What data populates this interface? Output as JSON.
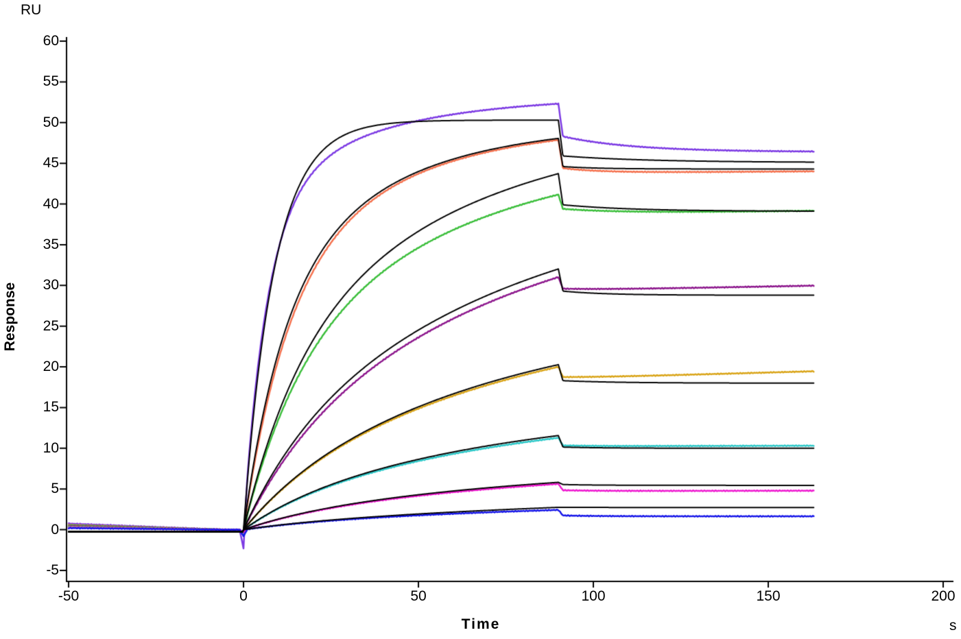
{
  "labels": {
    "y_unit": "RU",
    "y_axis": "Response",
    "x_axis": "Time",
    "x_unit": "s"
  },
  "chart_data": {
    "type": "line",
    "title": "",
    "ylabel": "Response",
    "yunit": "RU",
    "xlabel": "Time",
    "xunit": "s",
    "xlim": [
      -50,
      200
    ],
    "ylim": [
      -5,
      60
    ],
    "x_ticks": [
      -50,
      0,
      50,
      100,
      150,
      200
    ],
    "y_ticks": [
      60,
      55,
      50,
      45,
      40,
      35,
      30,
      25,
      20,
      15,
      10,
      5,
      0,
      -5
    ],
    "grid": false,
    "legend": "none",
    "phases": {
      "baseline_start": -50,
      "association_start": 0,
      "dissociation_start": 90,
      "end_time": 163
    },
    "series": [
      {
        "name": "curve-violet",
        "color": "#7C3AE3",
        "width": 2.5,
        "noise": 0.06,
        "baseline": 0.75,
        "baseline_mode": "decay",
        "dip": -2.3,
        "assoc": [
          [
            40,
            0.15
          ],
          [
            13.2,
            0.03
          ]
        ],
        "dissoc": {
          "drop_to": 48.3,
          "plateau": 46.4,
          "kd": 0.05,
          "drift": 0
        },
        "key_points": [
          [
            -50,
            0.75
          ],
          [
            0,
            0
          ],
          [
            90,
            52.3
          ],
          [
            163,
            46.5
          ]
        ]
      },
      {
        "name": "curve-coral",
        "color": "#F4714E",
        "width": 2.5,
        "noise": 0.06,
        "baseline": 0.6,
        "baseline_mode": "decay",
        "dip": -0.5,
        "assoc": [
          [
            30,
            0.08
          ],
          [
            20,
            0.025
          ]
        ],
        "dissoc": {
          "drop_to": 44.4,
          "plateau": 43.8,
          "kd": 0.09,
          "drift": 0.003
        },
        "key_points": [
          [
            -50,
            0.6
          ],
          [
            0,
            0
          ],
          [
            90,
            47.9
          ],
          [
            163,
            44.0
          ]
        ]
      },
      {
        "name": "curve-green",
        "color": "#3BBE3B",
        "width": 2.5,
        "noise": 0.06,
        "baseline": 0.55,
        "baseline_mode": "decay",
        "dip": -0.5,
        "assoc": [
          [
            22,
            0.06
          ],
          [
            26,
            0.015
          ]
        ],
        "dissoc": {
          "drop_to": 39.4,
          "plateau": 38.8,
          "kd": 0.06,
          "drift": 0.005
        },
        "key_points": [
          [
            -50,
            0.55
          ],
          [
            0,
            0
          ],
          [
            90,
            41.2
          ],
          [
            163,
            39.2
          ]
        ]
      },
      {
        "name": "curve-purple",
        "color": "#8C168C",
        "width": 2.5,
        "noise": 0.06,
        "baseline": 0.45,
        "baseline_mode": "decay",
        "dip": -0.4,
        "assoc": [
          [
            10,
            0.05
          ],
          [
            32,
            0.012
          ]
        ],
        "dissoc": {
          "drop_to": 29.6,
          "plateau": 29.4,
          "kd": 0.08,
          "drift": 0.008
        },
        "key_points": [
          [
            -50,
            0.45
          ],
          [
            0,
            0
          ],
          [
            90,
            31.0
          ],
          [
            163,
            30.0
          ]
        ]
      },
      {
        "name": "curve-gold",
        "color": "#D9A418",
        "width": 2.5,
        "noise": 0.06,
        "baseline": 0.35,
        "baseline_mode": "decay",
        "dip": -0.4,
        "assoc": [
          [
            5,
            0.05
          ],
          [
            22.8,
            0.012
          ]
        ],
        "dissoc": {
          "drop_to": 18.75,
          "plateau": 18.6,
          "kd": 0.08,
          "drift": 0.012
        },
        "key_points": [
          [
            -50,
            0.35
          ],
          [
            0,
            0
          ],
          [
            90,
            20.0
          ],
          [
            163,
            19.5
          ]
        ]
      },
      {
        "name": "curve-cyan",
        "color": "#2CC8C8",
        "width": 2.5,
        "noise": 0.06,
        "baseline": 0.3,
        "baseline_mode": "decay",
        "dip": -0.35,
        "assoc": [
          [
            3,
            0.05
          ],
          [
            12.6,
            0.012
          ]
        ],
        "dissoc": {
          "drop_to": 10.35,
          "plateau": 10.25,
          "kd": 0.1,
          "drift": 0.001
        },
        "key_points": [
          [
            -50,
            0.3
          ],
          [
            0,
            0
          ],
          [
            90,
            11.3
          ],
          [
            163,
            10.3
          ]
        ]
      },
      {
        "name": "curve-magenta",
        "color": "#EE18CF",
        "width": 2.5,
        "noise": 0.06,
        "baseline": 0.25,
        "baseline_mode": "decay",
        "dip": -0.3,
        "assoc": [
          [
            1.5,
            0.05
          ],
          [
            6.6,
            0.011
          ]
        ],
        "dissoc": {
          "drop_to": 4.85,
          "plateau": 4.75,
          "kd": 0.1,
          "drift": 0.0006
        },
        "key_points": [
          [
            -50,
            0.25
          ],
          [
            0,
            0
          ],
          [
            90,
            5.6
          ],
          [
            163,
            4.8
          ]
        ]
      },
      {
        "name": "curve-blue",
        "color": "#1616E8",
        "width": 2.5,
        "noise": 0.06,
        "baseline": 0.2,
        "baseline_mode": "decay",
        "dip": -0.8,
        "assoc": [
          [
            0.6,
            0.05
          ],
          [
            3.1,
            0.01
          ]
        ],
        "dissoc": {
          "drop_to": 1.75,
          "plateau": 1.65,
          "kd": 0.1,
          "drift": 0
        },
        "key_points": [
          [
            -50,
            0.2
          ],
          [
            0,
            0
          ],
          [
            90,
            2.4
          ],
          [
            163,
            1.65
          ]
        ]
      }
    ],
    "fits": [
      {
        "name": "fit-violet",
        "color": "#000000",
        "width": 2,
        "noise": 0,
        "baseline": -0.25,
        "baseline_mode": "flat",
        "assoc": [
          [
            50.3,
            0.115
          ]
        ],
        "dissoc": {
          "drop_to": 45.9,
          "plateau": 45.1,
          "kd": 0.04,
          "drift": 0
        },
        "key_points": [
          [
            0,
            0
          ],
          [
            90,
            50.2
          ],
          [
            163,
            45.2
          ]
        ]
      },
      {
        "name": "fit-coral",
        "color": "#000000",
        "width": 2,
        "noise": 0,
        "baseline": -0.25,
        "baseline_mode": "flat",
        "assoc": [
          [
            28,
            0.09
          ],
          [
            22,
            0.027
          ]
        ],
        "dissoc": {
          "drop_to": 44.6,
          "plateau": 44.3,
          "kd": 0.1,
          "drift": 0
        },
        "key_points": [
          [
            0,
            0
          ],
          [
            90,
            48.1
          ],
          [
            163,
            44.3
          ]
        ]
      },
      {
        "name": "fit-green",
        "color": "#000000",
        "width": 2,
        "noise": 0,
        "baseline": -0.25,
        "baseline_mode": "flat",
        "assoc": [
          [
            22,
            0.062
          ],
          [
            29,
            0.0155
          ]
        ],
        "dissoc": {
          "drop_to": 39.9,
          "plateau": 39.1,
          "kd": 0.05,
          "drift": 0
        },
        "key_points": [
          [
            0,
            0
          ],
          [
            90,
            43.7
          ],
          [
            163,
            39.1
          ]
        ]
      },
      {
        "name": "fit-purple",
        "color": "#000000",
        "width": 2,
        "noise": 0,
        "baseline": -0.25,
        "baseline_mode": "flat",
        "assoc": [
          [
            10,
            0.055
          ],
          [
            33,
            0.0123
          ]
        ],
        "dissoc": {
          "drop_to": 29.3,
          "plateau": 28.8,
          "kd": 0.08,
          "drift": 0
        },
        "key_points": [
          [
            0,
            0
          ],
          [
            90,
            32.0
          ],
          [
            163,
            28.8
          ]
        ]
      },
      {
        "name": "fit-gold",
        "color": "#000000",
        "width": 2,
        "noise": 0,
        "baseline": -0.25,
        "baseline_mode": "flat",
        "assoc": [
          [
            5,
            0.05
          ],
          [
            23,
            0.0122
          ]
        ],
        "dissoc": {
          "drop_to": 18.3,
          "plateau": 18.0,
          "kd": 0.06,
          "drift": 0
        },
        "key_points": [
          [
            0,
            0
          ],
          [
            90,
            20.3
          ],
          [
            163,
            18.0
          ]
        ]
      },
      {
        "name": "fit-cyan",
        "color": "#000000",
        "width": 2,
        "noise": 0,
        "baseline": -0.25,
        "baseline_mode": "flat",
        "assoc": [
          [
            3,
            0.05
          ],
          [
            12.9,
            0.0122
          ]
        ],
        "dissoc": {
          "drop_to": 10.15,
          "plateau": 10.0,
          "kd": 0.08,
          "drift": 0
        },
        "key_points": [
          [
            0,
            0
          ],
          [
            90,
            11.55
          ],
          [
            163,
            10.0
          ]
        ]
      },
      {
        "name": "fit-magenta",
        "color": "#000000",
        "width": 2,
        "noise": 0,
        "baseline": -0.25,
        "baseline_mode": "flat",
        "assoc": [
          [
            1.5,
            0.05
          ],
          [
            6.9,
            0.011
          ]
        ],
        "dissoc": {
          "drop_to": 5.55,
          "plateau": 5.45,
          "kd": 0.1,
          "drift": 0
        },
        "key_points": [
          [
            0,
            0
          ],
          [
            90,
            5.8
          ],
          [
            163,
            5.45
          ]
        ]
      },
      {
        "name": "fit-blue",
        "color": "#000000",
        "width": 2,
        "noise": 0,
        "baseline": -0.25,
        "baseline_mode": "flat",
        "assoc": [
          [
            0.6,
            0.05
          ],
          [
            4.2,
            0.008
          ]
        ],
        "dissoc": {
          "drop_to": 2.75,
          "plateau": 2.72,
          "kd": 0.05,
          "drift": 0
        },
        "key_points": [
          [
            0,
            0
          ],
          [
            90,
            2.75
          ],
          [
            163,
            2.75
          ]
        ]
      }
    ]
  }
}
